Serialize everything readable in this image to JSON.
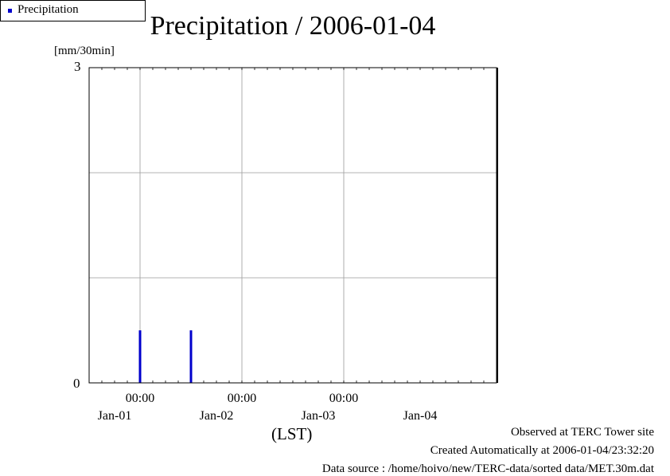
{
  "chart_data": {
    "type": "bar",
    "title": "Precipitation / 2006-01-04",
    "ylabel": "[mm/30min]",
    "xlabel": "(LST)",
    "ylim": [
      0,
      3
    ],
    "y_ticks": [
      0,
      1,
      2,
      3
    ],
    "y_tick_labels": [
      {
        "value": 0,
        "text": "0"
      },
      {
        "value": 3,
        "text": "3"
      }
    ],
    "x_range": [
      "2006-01-01 00:00",
      "2006-01-05 00:00"
    ],
    "x_time_ticks": [
      {
        "time": "2006-01-01 12:00",
        "text": "00:00"
      },
      {
        "time": "2006-01-02 12:00",
        "text": "00:00"
      },
      {
        "time": "2006-01-03 12:00",
        "text": "00:00"
      }
    ],
    "x_date_labels": [
      {
        "time": "2006-01-01 06:00",
        "text": "Jan-01"
      },
      {
        "time": "2006-01-02 06:00",
        "text": "Jan-02"
      },
      {
        "time": "2006-01-03 06:00",
        "text": "Jan-03"
      },
      {
        "time": "2006-01-04 06:00",
        "text": "Jan-04"
      }
    ],
    "grid": true,
    "legend_position": "bottom-right, outside plot",
    "series": [
      {
        "name": "Precipitation",
        "color": "#0000cc",
        "points": [
          {
            "x": "2006-01-01 12:00",
            "y": 0.5
          },
          {
            "x": "2006-01-02 00:00",
            "y": 0.5
          }
        ]
      }
    ]
  },
  "footer": {
    "observed": "Observed at TERC Tower site",
    "created": "Created Automatically at 2006-01-04/23:32:20",
    "source": "Data source : /home/hoivo/new/TERC-data/sorted  data/MET.30m.dat"
  }
}
